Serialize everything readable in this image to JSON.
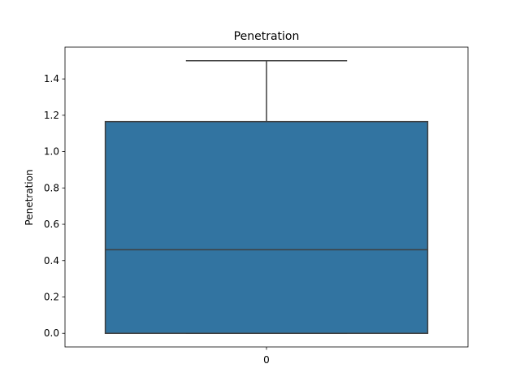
{
  "chart_data": {
    "type": "box",
    "title": "Penetration",
    "xlabel": "",
    "ylabel": "Penetration",
    "categories": [
      "0"
    ],
    "ylim": [
      -0.075,
      1.575
    ],
    "yticks": [
      0.0,
      0.2,
      0.4,
      0.6,
      0.8,
      1.0,
      1.2,
      1.4
    ],
    "ytick_labels": [
      "0.0",
      "0.2",
      "0.4",
      "0.6",
      "0.8",
      "1.0",
      "1.2",
      "1.4"
    ],
    "grid": false,
    "boxes": [
      {
        "category": "0",
        "whisker_low": 0.0,
        "q1": 0.0,
        "median": 0.46,
        "q3": 1.165,
        "whisker_high": 1.5
      }
    ],
    "colors": {
      "box_fill": "#3274a1",
      "box_edge": "#3f3f3f",
      "frame": "#000000"
    }
  }
}
